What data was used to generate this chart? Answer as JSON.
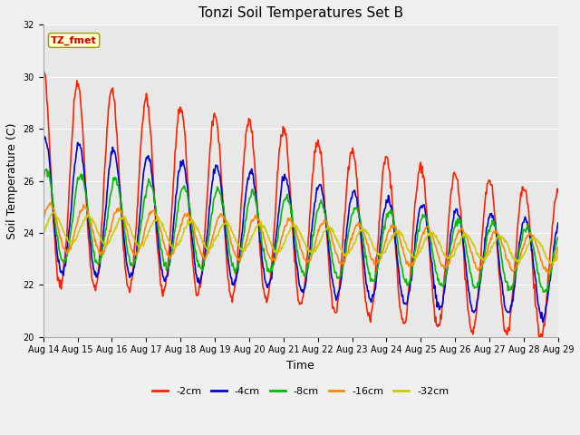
{
  "title": "Tonzi Soil Temperatures Set B",
  "xlabel": "Time",
  "ylabel": "Soil Temperature (C)",
  "ylim": [
    20,
    32
  ],
  "yticks": [
    20,
    22,
    24,
    26,
    28,
    30,
    32
  ],
  "n_days": 15,
  "xtick_labels": [
    "Aug 14",
    "Aug 15",
    "Aug 16",
    "Aug 17",
    "Aug 18",
    "Aug 19",
    "Aug 20",
    "Aug 21",
    "Aug 22",
    "Aug 23",
    "Aug 24",
    "Aug 25",
    "Aug 26",
    "Aug 27",
    "Aug 28",
    "Aug 29"
  ],
  "series_colors": [
    "#ff2200",
    "#0000cc",
    "#00bb00",
    "#ff8800",
    "#cccc00"
  ],
  "series_labels": [
    "-2cm",
    "-4cm",
    "-8cm",
    "-16cm",
    "-32cm"
  ],
  "annotation_text": "TZ_fmet",
  "annotation_color": "#cc0000",
  "annotation_bg": "#ffffcc",
  "annotation_border": "#999900",
  "plot_bg": "#e8e8e8",
  "fig_bg": "#f0f0f0",
  "grid_color": "#ffffff",
  "linewidth": 1.2,
  "title_fontsize": 11,
  "axis_label_fontsize": 9,
  "tick_fontsize": 7,
  "legend_fontsize": 8,
  "annot_fontsize": 8
}
